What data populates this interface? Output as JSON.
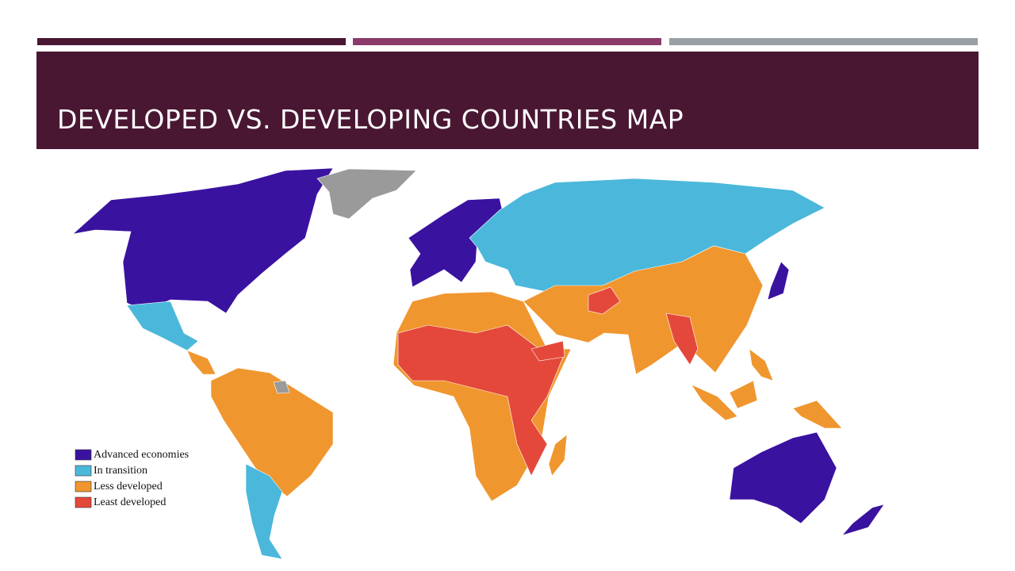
{
  "header": {
    "title": "DEVELOPED VS. DEVELOPING COUNTRIES MAP"
  },
  "legend": [
    {
      "label": "Advanced economies",
      "color": "#3a12a0"
    },
    {
      "label": "In transition",
      "color": "#4bb8db"
    },
    {
      "label": "Less developed",
      "color": "#f0962e"
    },
    {
      "label": "Least developed",
      "color": "#e4483a"
    }
  ]
}
